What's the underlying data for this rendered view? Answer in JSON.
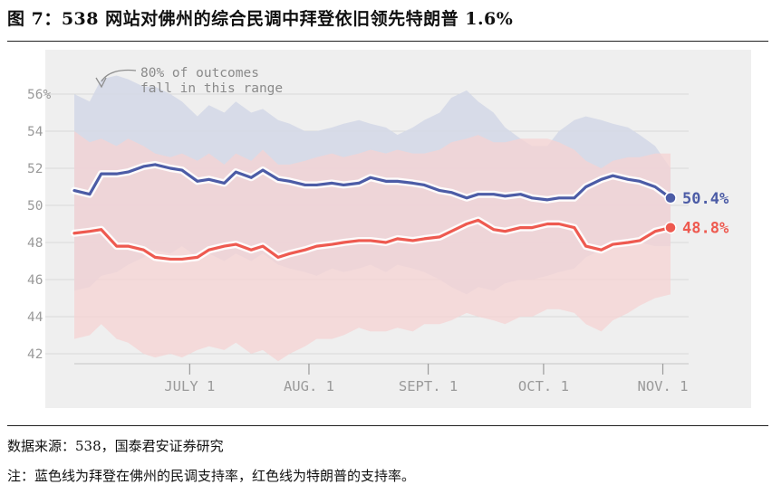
{
  "title": "图 7：538 网站对佛州的综合民调中拜登依旧领先特朗普 1.6%",
  "source_note": "数据来源：538，国泰君安证券研究",
  "footnote": "注：蓝色线为拜登在佛州的民调支持率，红色线为特朗普的支持率。",
  "colors": {
    "biden": "#4c5ca6",
    "trump": "#ee5a50",
    "biden_band": "#d4d8e7",
    "trump_band": "#f5d3d3",
    "overlap_band": "#dcc3cb",
    "panel_bg": "#efefef"
  },
  "chart_data": {
    "type": "line",
    "title": "",
    "xlabel": "",
    "ylabel": "",
    "annotation": [
      "80% of outcomes",
      "fall in this range"
    ],
    "xlim": [
      "2020-06-01",
      "2020-11-03"
    ],
    "ylim": [
      41.5,
      57
    ],
    "yticks": [
      42,
      44,
      46,
      48,
      50,
      52,
      54,
      56
    ],
    "ytick_labels": [
      "42",
      "44",
      "46",
      "48",
      "50",
      "52",
      "54",
      "56%"
    ],
    "xticks": [
      {
        "date": "2020-07-01",
        "label": "JULY 1"
      },
      {
        "date": "2020-08-01",
        "label": "AUG. 1"
      },
      {
        "date": "2020-09-01",
        "label": "SEPT. 1"
      },
      {
        "date": "2020-10-01",
        "label": "OCT. 1"
      },
      {
        "date": "2020-11-01",
        "label": "NOV. 1"
      }
    ],
    "grid": true,
    "x": [
      "2020-06-01",
      "2020-06-05",
      "2020-06-08",
      "2020-06-12",
      "2020-06-15",
      "2020-06-19",
      "2020-06-22",
      "2020-06-26",
      "2020-06-29",
      "2020-07-03",
      "2020-07-06",
      "2020-07-10",
      "2020-07-13",
      "2020-07-17",
      "2020-07-20",
      "2020-07-24",
      "2020-07-27",
      "2020-07-31",
      "2020-08-03",
      "2020-08-07",
      "2020-08-10",
      "2020-08-14",
      "2020-08-17",
      "2020-08-21",
      "2020-08-24",
      "2020-08-28",
      "2020-08-31",
      "2020-09-04",
      "2020-09-07",
      "2020-09-11",
      "2020-09-14",
      "2020-09-18",
      "2020-09-21",
      "2020-09-25",
      "2020-09-28",
      "2020-10-02",
      "2020-10-05",
      "2020-10-09",
      "2020-10-12",
      "2020-10-16",
      "2020-10-19",
      "2020-10-23",
      "2020-10-26",
      "2020-10-30",
      "2020-11-03"
    ],
    "series": [
      {
        "name": "Biden",
        "end_label": "50.4%",
        "values": [
          50.8,
          50.6,
          51.7,
          51.7,
          51.8,
          52.1,
          52.2,
          52.0,
          51.9,
          51.3,
          51.4,
          51.2,
          51.8,
          51.5,
          51.9,
          51.4,
          51.3,
          51.1,
          51.1,
          51.2,
          51.1,
          51.2,
          51.5,
          51.3,
          51.3,
          51.2,
          51.1,
          50.8,
          50.7,
          50.4,
          50.6,
          50.6,
          50.5,
          50.6,
          50.4,
          50.3,
          50.4,
          50.4,
          51.0,
          51.4,
          51.6,
          51.4,
          51.3,
          51.0,
          50.4
        ],
        "band_upper": [
          56.0,
          55.6,
          56.8,
          57.0,
          56.8,
          56.4,
          56.4,
          56.0,
          55.6,
          54.8,
          55.4,
          55.0,
          55.6,
          55.0,
          55.2,
          54.6,
          54.4,
          54.0,
          54.0,
          54.2,
          54.4,
          54.6,
          54.4,
          54.2,
          53.8,
          54.2,
          54.6,
          55.0,
          55.8,
          56.2,
          55.6,
          55.0,
          54.2,
          53.6,
          53.2,
          53.2,
          54.0,
          54.6,
          54.8,
          54.6,
          54.4,
          54.2,
          53.8,
          53.2,
          52.0
        ],
        "band_lower": [
          45.4,
          45.6,
          46.2,
          46.4,
          46.8,
          47.2,
          47.6,
          47.4,
          47.8,
          47.2,
          47.4,
          47.0,
          47.4,
          47.0,
          47.4,
          46.8,
          46.6,
          46.4,
          46.2,
          46.6,
          46.4,
          46.6,
          46.8,
          46.4,
          46.8,
          46.6,
          46.4,
          46.0,
          45.6,
          45.2,
          45.6,
          45.4,
          45.8,
          46.0,
          46.0,
          46.2,
          46.4,
          46.6,
          47.2,
          47.6,
          48.0,
          47.8,
          48.0,
          47.8,
          47.8
        ]
      },
      {
        "name": "Trump",
        "end_label": "48.8%",
        "values": [
          48.5,
          48.6,
          48.7,
          47.8,
          47.8,
          47.6,
          47.2,
          47.1,
          47.1,
          47.2,
          47.6,
          47.8,
          47.9,
          47.6,
          47.8,
          47.2,
          47.4,
          47.6,
          47.8,
          47.9,
          48.0,
          48.1,
          48.1,
          48.0,
          48.2,
          48.1,
          48.2,
          48.3,
          48.6,
          49.0,
          49.2,
          48.7,
          48.6,
          48.8,
          48.8,
          49.0,
          49.0,
          48.8,
          47.8,
          47.6,
          47.9,
          48.0,
          48.1,
          48.6,
          48.8
        ],
        "band_upper": [
          54.0,
          53.4,
          53.6,
          53.2,
          53.6,
          53.2,
          52.8,
          52.6,
          52.8,
          52.4,
          52.8,
          52.2,
          52.8,
          52.4,
          53.0,
          52.2,
          52.2,
          52.4,
          52.6,
          52.8,
          52.6,
          52.8,
          53.0,
          52.8,
          53.0,
          52.8,
          52.8,
          53.0,
          53.4,
          53.6,
          53.8,
          53.4,
          53.4,
          53.6,
          53.6,
          53.6,
          53.4,
          53.0,
          52.4,
          52.0,
          52.4,
          52.6,
          52.6,
          52.8,
          52.8
        ],
        "band_lower": [
          42.8,
          43.0,
          43.6,
          42.8,
          42.6,
          42.0,
          41.8,
          42.0,
          41.8,
          42.2,
          42.4,
          42.2,
          42.6,
          42.0,
          42.2,
          41.6,
          42.0,
          42.4,
          42.8,
          42.8,
          43.0,
          43.4,
          43.2,
          43.2,
          43.4,
          43.2,
          43.6,
          43.6,
          43.8,
          44.2,
          44.0,
          43.8,
          43.6,
          44.0,
          44.0,
          44.4,
          44.4,
          44.2,
          43.6,
          43.2,
          43.8,
          44.2,
          44.6,
          45.0,
          45.2
        ]
      }
    ]
  }
}
